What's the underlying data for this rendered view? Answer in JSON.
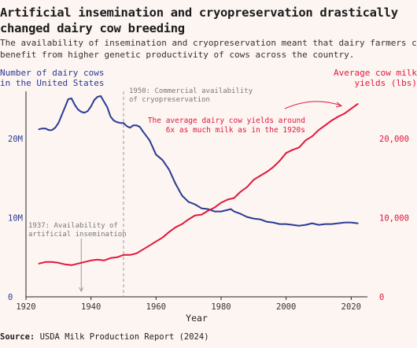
{
  "title": "Artificial insemination and cryopreservation drastically\nchanged dairy cow breeding",
  "subtitle": "The availability of insemination and cryopreservation meant that dairy farmers could\nbenefit from higher genetic productivity of cows across the country.",
  "source_label": "Source:",
  "source_text": "USDA Milk Production Report (2024)",
  "colors": {
    "cows": "#2a3a94",
    "milk": "#e0173d",
    "annotation": "#777777",
    "background": "#fdf5f2"
  },
  "chart_data": {
    "type": "line",
    "xlabel": "Year",
    "xlim": [
      1920,
      2025
    ],
    "x_ticks": [
      "1920",
      "1940",
      "1960",
      "1980",
      "2000",
      "2020"
    ],
    "left_axis": {
      "label": "Number of dairy cows\nin the United States",
      "ylim": [
        0,
        26
      ],
      "ticks": [
        {
          "value": 0,
          "label": "0"
        },
        {
          "value": 10,
          "label": "10M"
        },
        {
          "value": 20,
          "label": "20M"
        }
      ],
      "unit": "million head"
    },
    "right_axis": {
      "label": "Average cow milk\nyields (lbs)",
      "ylim": [
        0,
        26000
      ],
      "ticks": [
        {
          "value": 0,
          "label": "0"
        },
        {
          "value": 10000,
          "label": "10,000"
        },
        {
          "value": 20000,
          "label": "20,000"
        }
      ]
    },
    "series": [
      {
        "name": "Number of dairy cows",
        "axis": "left",
        "x": [
          1924,
          1925,
          1926,
          1927,
          1928,
          1929,
          1930,
          1931,
          1932,
          1933,
          1934,
          1935,
          1936,
          1937,
          1938,
          1939,
          1940,
          1941,
          1942,
          1943,
          1944,
          1945,
          1946,
          1947,
          1948,
          1949,
          1950,
          1951,
          1952,
          1953,
          1954,
          1955,
          1956,
          1958,
          1960,
          1962,
          1964,
          1966,
          1968,
          1970,
          1972,
          1974,
          1976,
          1978,
          1980,
          1982,
          1983,
          1984,
          1986,
          1988,
          1990,
          1992,
          1994,
          1996,
          1998,
          2000,
          2002,
          2004,
          2006,
          2008,
          2010,
          2012,
          2014,
          2016,
          2018,
          2020,
          2022
        ],
        "values": [
          21.2,
          21.3,
          21.3,
          21.1,
          21.1,
          21.4,
          22.0,
          23.0,
          24.0,
          25.0,
          25.1,
          24.3,
          23.7,
          23.4,
          23.3,
          23.5,
          24.1,
          24.9,
          25.3,
          25.4,
          24.7,
          24.0,
          22.8,
          22.3,
          22.1,
          22.0,
          22.0,
          21.6,
          21.4,
          21.7,
          21.7,
          21.5,
          20.9,
          19.8,
          18.0,
          17.3,
          16.1,
          14.3,
          12.8,
          12.0,
          11.7,
          11.2,
          11.1,
          10.8,
          10.8,
          11.0,
          11.1,
          10.8,
          10.5,
          10.1,
          9.9,
          9.8,
          9.5,
          9.4,
          9.2,
          9.2,
          9.1,
          9.0,
          9.1,
          9.3,
          9.1,
          9.2,
          9.2,
          9.3,
          9.4,
          9.4,
          9.3
        ]
      },
      {
        "name": "Average cow milk yields",
        "axis": "right",
        "x": [
          1924,
          1926,
          1928,
          1930,
          1932,
          1934,
          1936,
          1938,
          1940,
          1942,
          1944,
          1946,
          1948,
          1950,
          1952,
          1954,
          1956,
          1958,
          1960,
          1962,
          1964,
          1966,
          1968,
          1970,
          1972,
          1974,
          1976,
          1978,
          1980,
          1982,
          1984,
          1986,
          1988,
          1990,
          1992,
          1994,
          1996,
          1998,
          2000,
          2002,
          2004,
          2006,
          2008,
          2010,
          2012,
          2014,
          2016,
          2018,
          2020,
          2022
        ],
        "values": [
          4200,
          4400,
          4400,
          4300,
          4100,
          4000,
          4200,
          4400,
          4600,
          4700,
          4600,
          4900,
          5000,
          5300,
          5300,
          5500,
          6000,
          6500,
          7000,
          7500,
          8200,
          8800,
          9200,
          9800,
          10300,
          10400,
          10900,
          11300,
          11900,
          12300,
          12500,
          13300,
          13900,
          14800,
          15300,
          15800,
          16400,
          17200,
          18200,
          18600,
          18900,
          19800,
          20300,
          21100,
          21700,
          22300,
          22800,
          23200,
          23800,
          24400
        ]
      }
    ],
    "annotations": [
      {
        "year": 1950,
        "text": "1950: Commercial availability\nof cryopreservation"
      },
      {
        "year": 1937,
        "text": "1937: Availability of\nartificial insemination"
      },
      {
        "text": "The average dairy cow yields around\n6x as much milk as in the 1920s"
      }
    ]
  }
}
